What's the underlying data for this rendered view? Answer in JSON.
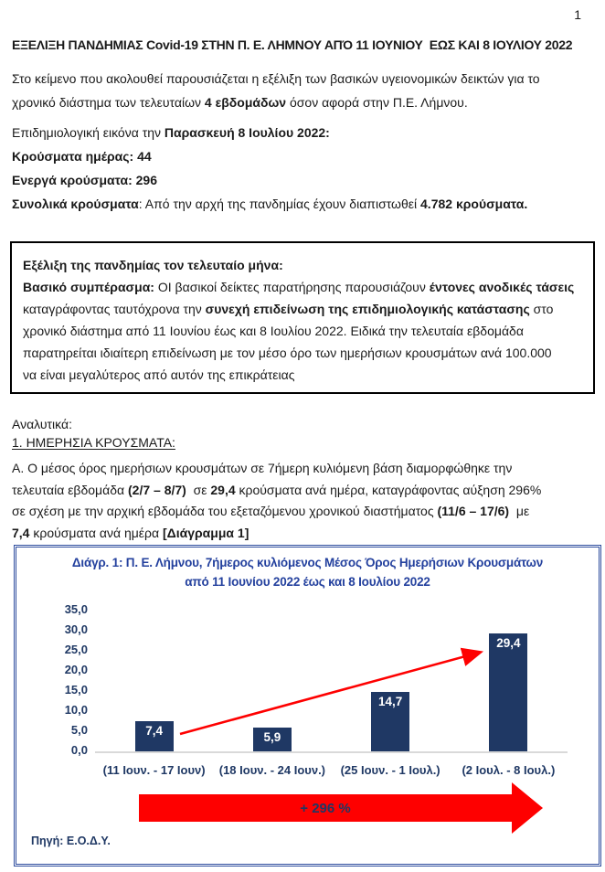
{
  "page": {
    "number": "1"
  },
  "doc_title": "ΕΞΕΛΙΞΗ ΠΑΝΔΗΜΙΑΣ Covid-19 ΣΤΗΝ Π. Ε. ΛΗΜΝΟΥ ΑΠΌ 11 ΙΟΥΝΙΟΥ  ΕΩΣ ΚΑΙ 8 ΙΟΥΛΙΟΥ 2022",
  "intro": {
    "lines": [
      [
        {
          "t": "Στο κείμενο που ακολουθεί παρουσιάζεται η εξέλιξη των βασικών υγειονομικών δεικτών για το"
        }
      ],
      [
        {
          "t": "χρονικό διάστημα των τελευταίων "
        },
        {
          "t": "4 εβδομάδων",
          "b": true
        },
        {
          "t": " όσον αφορά στην Π.Ε. Λήμνου."
        }
      ]
    ]
  },
  "snapshot": {
    "lines": [
      [
        {
          "t": "Επιδημιολογική εικόνα την "
        },
        {
          "t": "Παρασκευή 8 Ιουλίου 2022:",
          "b": true
        }
      ],
      [
        {
          "t": "Κρούσματα ημέρας: 44",
          "b": true
        }
      ],
      [
        {
          "t": "Ενεργά κρούσματα: 296",
          "b": true
        }
      ],
      [
        {
          "t": "Συνολικά κρούσματα",
          "b": true
        },
        {
          "t": ": Από την αρχή της πανδημίας έχουν διαπιστωθεί "
        },
        {
          "t": "4.782 κρούσματα.",
          "b": true
        }
      ]
    ]
  },
  "summary_box": {
    "lines": [
      [
        {
          "t": "Εξέλιξη της πανδημίας τον τελευταίο μήνα:",
          "b": true
        }
      ],
      [
        {
          "t": "Βασικό συμπέρασμα:",
          "b": true
        },
        {
          "t": " ΟΙ βασικοί δείκτες παρατήρησης παρουσιάζουν "
        },
        {
          "t": "έντονες ανοδικές τάσεις",
          "b": true
        }
      ],
      [
        {
          "t": "καταγράφοντας ταυτόχρονα την "
        },
        {
          "t": "συνεχή επιδείνωση της επιδημιολογικής κατάστασης",
          "b": true
        },
        {
          "t": " στο"
        }
      ],
      [
        {
          "t": "χρονικό διάστημα από 11 Ιουνίου έως και 8 Ιουλίου 2022. Ειδικά την τελευταία εβδομάδα"
        }
      ],
      [
        {
          "t": "παρατηρείται ιδιαίτερη επιδείνωση με τον μέσο όρο των ημερήσιων κρουσμάτων ανά 100.000"
        }
      ],
      [
        {
          "t": "να είναι μεγαλύτερος από αυτόν της επικράτειας"
        }
      ]
    ]
  },
  "analysis": {
    "label": "Αναλυτικά:",
    "heading": "1. ΗΜΕΡΗΣΙΑ ΚΡΟΥΣΜΑΤΑ:",
    "lines": [
      [
        {
          "t": "Α. Ο μέσος όρος ημερήσιων κρουσμάτων σε 7ήμερη κυλιόμενη βάση διαμορφώθηκε την"
        }
      ],
      [
        {
          "t": "τελευταία εβδομάδα "
        },
        {
          "t": "(2/7 – 8/7)",
          "b": true
        },
        {
          "t": "  σε "
        },
        {
          "t": "29,4",
          "b": true
        },
        {
          "t": " κρούσματα ανά ημέρα, καταγράφοντας αύξηση 296%"
        }
      ],
      [
        {
          "t": "σε σχέση με την αρχική εβδομάδα του εξεταζόμενου χρονικού διαστήματος "
        },
        {
          "t": "(11/6 – 17/6)",
          "b": true
        },
        {
          "t": "  με"
        }
      ],
      [
        {
          "t": "7,4",
          "b": true
        },
        {
          "t": " κρούσματα ανά ημέρα "
        },
        {
          "t": "[Διάγραμμα 1]",
          "b": true
        }
      ]
    ]
  },
  "chart_data": {
    "type": "bar",
    "title": "Διάγρ. 1: Π. Ε. Λήμνου, 7ήμερος κυλιόμενος Μέσος Όρος Ημερήσιων Κρουσμάτων από 11 Ιουνίου 2022 έως και 8 Ιουλίου 2022",
    "title_lines": [
      "Διάγρ. 1: Π. Ε. Λήμνου, 7ήμερος κυλιόμενος Μέσος Όρος Ημερήσιων Κρουσμάτων",
      "από 11 Ιουνίου 2022 έως και 8 Ιουλίου 2022"
    ],
    "categories": [
      "(11 Ιουν. - 17 Ιουν)",
      "(18 Ιουν. - 24 Ιουν.)",
      "(25 Ιουν. - 1 Ιουλ.)",
      "(2 Ιουλ. - 8 Ιουλ.)"
    ],
    "values": [
      7.4,
      5.9,
      14.7,
      29.4
    ],
    "value_labels": [
      "7,4",
      "5,9",
      "14,7",
      "29,4"
    ],
    "yticks": [
      "35,0",
      "30,0",
      "25,0",
      "20,0",
      "15,0",
      "10,0",
      "5,0",
      "0,0"
    ],
    "ylim": [
      0,
      35
    ],
    "ytick_step": 5,
    "grid": false,
    "legend": "none",
    "xlabel": "",
    "ylabel": "",
    "annotation": "+ 296 %",
    "source": "Πηγή: Ε.Ο.Δ.Υ.",
    "bar_color": "#1f3864",
    "title_color": "#24419e",
    "arrow_color": "#fe0000",
    "box_border_color": "#2e4d9e"
  }
}
